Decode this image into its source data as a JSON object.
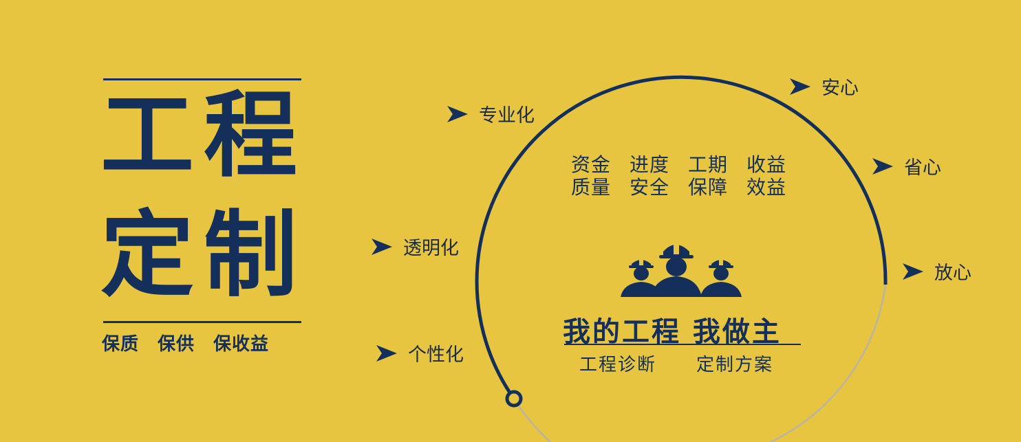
{
  "colors": {
    "background": "#E7C540",
    "navy": "#14305A",
    "arc_tail": "#B9B4A4"
  },
  "left": {
    "title_line1": "工程",
    "title_line2": "定制",
    "subtitle": "保质　保供　保收益"
  },
  "left_tags": [
    {
      "label": "专业化",
      "icon": "arrow-right-icon"
    },
    {
      "label": "透明化",
      "icon": "arrow-right-icon"
    },
    {
      "label": "个性化",
      "icon": "arrow-right-icon"
    }
  ],
  "right_tags": [
    {
      "label": "安心",
      "icon": "arrow-right-icon"
    },
    {
      "label": "省心",
      "icon": "arrow-right-icon"
    },
    {
      "label": "放心",
      "icon": "arrow-right-icon"
    }
  ],
  "circle": {
    "keywords_row1": [
      "资金",
      "进度",
      "工期",
      "收益"
    ],
    "keywords_row2": [
      "质量",
      "安全",
      "保障",
      "效益"
    ],
    "icon": "construction-workers-icon",
    "slogan": "我的工程 我做主",
    "service1": "工程诊断",
    "service2": "定制方案"
  }
}
